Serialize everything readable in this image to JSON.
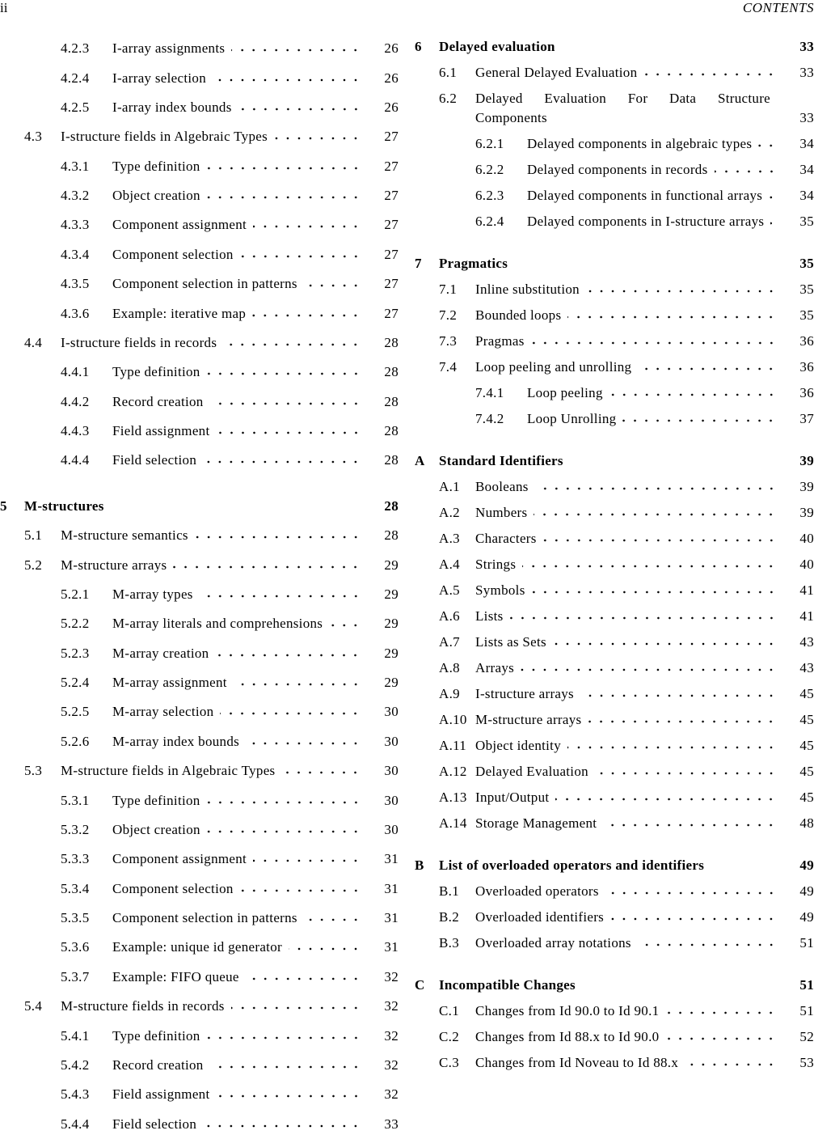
{
  "header": {
    "page": "ii",
    "title": "CONTENTS"
  },
  "columns": [
    {
      "entries": [
        {
          "num": "4.2.3",
          "title": "I-array assignments",
          "page": 26
        },
        {
          "num": "4.2.4",
          "title": "I-array selection",
          "page": 26
        },
        {
          "num": "4.2.5",
          "title": "I-array index bounds",
          "page": 26
        },
        {
          "num": "4.3",
          "title": "I-structure fields in Algebraic Types",
          "page": 27
        },
        {
          "num": "4.3.1",
          "title": "Type definition",
          "page": 27
        },
        {
          "num": "4.3.2",
          "title": "Object creation",
          "page": 27
        },
        {
          "num": "4.3.3",
          "title": "Component assignment",
          "page": 27
        },
        {
          "num": "4.3.4",
          "title": "Component selection",
          "page": 27
        },
        {
          "num": "4.3.5",
          "title": "Component selection in patterns",
          "page": 27
        },
        {
          "num": "4.3.6",
          "title": "Example: iterative map",
          "page": 27
        },
        {
          "num": "4.4",
          "title": "I-structure fields in records",
          "page": 28
        },
        {
          "num": "4.4.1",
          "title": "Type definition",
          "page": 28
        },
        {
          "num": "4.4.2",
          "title": "Record creation",
          "page": 28
        },
        {
          "num": "4.4.3",
          "title": "Field assignment",
          "page": 28
        },
        {
          "num": "4.4.4",
          "title": "Field selection",
          "page": 28
        },
        {
          "num": "5",
          "title": "M-structures",
          "page": 28
        },
        {
          "num": "5.1",
          "title": "M-structure semantics",
          "page": 28
        },
        {
          "num": "5.2",
          "title": "M-structure arrays",
          "page": 29
        },
        {
          "num": "5.2.1",
          "title": "M-array types",
          "page": 29
        },
        {
          "num": "5.2.2",
          "title": "M-array literals and comprehensions",
          "page": 29
        },
        {
          "num": "5.2.3",
          "title": "M-array creation",
          "page": 29
        },
        {
          "num": "5.2.4",
          "title": "M-array assignment",
          "page": 29
        },
        {
          "num": "5.2.5",
          "title": "M-array selection",
          "page": 30
        },
        {
          "num": "5.2.6",
          "title": "M-array index bounds",
          "page": 30
        },
        {
          "num": "5.3",
          "title": "M-structure fields in Algebraic Types",
          "page": 30
        },
        {
          "num": "5.3.1",
          "title": "Type definition",
          "page": 30
        },
        {
          "num": "5.3.2",
          "title": "Object creation",
          "page": 30
        },
        {
          "num": "5.3.3",
          "title": "Component assignment",
          "page": 31
        },
        {
          "num": "5.3.4",
          "title": "Component selection",
          "page": 31
        },
        {
          "num": "5.3.5",
          "title": "Component selection in patterns",
          "page": 31
        },
        {
          "num": "5.3.6",
          "title": "Example: unique id generator",
          "page": 31
        },
        {
          "num": "5.3.7",
          "title": "Example: FIFO queue",
          "page": 32
        },
        {
          "num": "5.4",
          "title": "M-structure fields in records",
          "page": 32
        },
        {
          "num": "5.4.1",
          "title": "Type definition",
          "page": 32
        },
        {
          "num": "5.4.2",
          "title": "Record creation",
          "page": 32
        },
        {
          "num": "5.4.3",
          "title": "Field assignment",
          "page": 32
        },
        {
          "num": "5.4.4",
          "title": "Field selection",
          "page": 33
        }
      ]
    },
    {
      "entries": [
        {
          "num": "6",
          "title": "Delayed evaluation",
          "page": 33
        },
        {
          "num": "6.1",
          "title": "General Delayed Evaluation",
          "page": 33
        },
        {
          "num": "6.2",
          "title": "Delayed Evaluation For Data Structure Components",
          "page": 33
        },
        {
          "num": "6.2.1",
          "title": "Delayed components in algebraic types",
          "page": 34
        },
        {
          "num": "6.2.2",
          "title": "Delayed components in records",
          "page": 34
        },
        {
          "num": "6.2.3",
          "title": "Delayed components in functional arrays",
          "page": 34
        },
        {
          "num": "6.2.4",
          "title": "Delayed components in I-structure arrays",
          "page": 35
        },
        {
          "num": "7",
          "title": "Pragmatics",
          "page": 35
        },
        {
          "num": "7.1",
          "title": "Inline substitution",
          "page": 35
        },
        {
          "num": "7.2",
          "title": "Bounded loops",
          "page": 35
        },
        {
          "num": "7.3",
          "title": "Pragmas",
          "page": 36
        },
        {
          "num": "7.4",
          "title": "Loop peeling and unrolling",
          "page": 36
        },
        {
          "num": "7.4.1",
          "title": "Loop peeling",
          "page": 36
        },
        {
          "num": "7.4.2",
          "title": "Loop Unrolling",
          "page": 37
        },
        {
          "num": "A",
          "title": "Standard Identifiers",
          "page": 39
        },
        {
          "num": "A.1",
          "title": "Booleans",
          "page": 39
        },
        {
          "num": "A.2",
          "title": "Numbers",
          "page": 39
        },
        {
          "num": "A.3",
          "title": "Characters",
          "page": 40
        },
        {
          "num": "A.4",
          "title": "Strings",
          "page": 40
        },
        {
          "num": "A.5",
          "title": "Symbols",
          "page": 41
        },
        {
          "num": "A.6",
          "title": "Lists",
          "page": 41
        },
        {
          "num": "A.7",
          "title": "Lists as Sets",
          "page": 43
        },
        {
          "num": "A.8",
          "title": "Arrays",
          "page": 43
        },
        {
          "num": "A.9",
          "title": "I-structure arrays",
          "page": 45
        },
        {
          "num": "A.10",
          "title": "M-structure arrays",
          "page": 45
        },
        {
          "num": "A.11",
          "title": "Object identity",
          "page": 45
        },
        {
          "num": "A.12",
          "title": "Delayed Evaluation",
          "page": 45
        },
        {
          "num": "A.13",
          "title": "Input/Output",
          "page": 45
        },
        {
          "num": "A.14",
          "title": "Storage Management",
          "page": 48
        },
        {
          "num": "B",
          "title": "List of overloaded operators and identifiers",
          "page": 49
        },
        {
          "num": "B.1",
          "title": "Overloaded operators",
          "page": 49
        },
        {
          "num": "B.2",
          "title": "Overloaded identifiers",
          "page": 49
        },
        {
          "num": "B.3",
          "title": "Overloaded array notations",
          "page": 51
        },
        {
          "num": "C",
          "title": "Incompatible Changes",
          "page": 51
        },
        {
          "num": "C.1",
          "title": "Changes from Id 90.0 to Id 90.1",
          "page": 51
        },
        {
          "num": "C.2",
          "title": "Changes from Id 88.x to Id 90.0",
          "page": 52
        },
        {
          "num": "C.3",
          "title": "Changes from Id Noveau to Id 88.x",
          "page": 53
        }
      ]
    }
  ]
}
